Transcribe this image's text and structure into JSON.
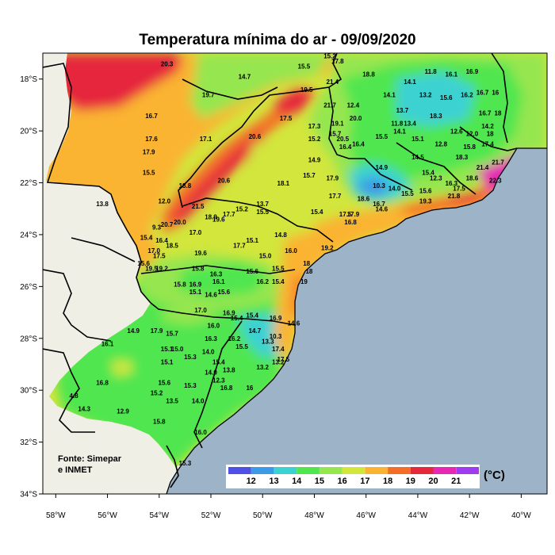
{
  "title": "Temperatura mínima do ar - 09/09/2020",
  "source_line1": "Fonte: Simepar",
  "source_line2": "e INMET",
  "unit": "(°C)",
  "colors": {
    "ocean": "#9db3c8",
    "land_outside": "#efefe6",
    "scale": [
      "#5050e6",
      "#3c9be6",
      "#3cd2d2",
      "#50e650",
      "#96e650",
      "#d2e63c",
      "#fab432",
      "#f56e28",
      "#e6283c",
      "#e628b4",
      "#a03cf0"
    ]
  },
  "colorbar_ticks": [
    "12",
    "13",
    "14",
    "15",
    "16",
    "17",
    "18",
    "19",
    "20",
    "21"
  ],
  "lat_ticks": [
    "18°S",
    "20°S",
    "22°S",
    "24°S",
    "26°S",
    "28°S",
    "30°S",
    "32°S",
    "34°S"
  ],
  "lon_ticks": [
    "58°W",
    "56°W",
    "54°W",
    "52°W",
    "50°W",
    "48°W",
    "46°W",
    "44°W",
    "42°W",
    "40°W"
  ],
  "station_values": [
    {
      "v": "20.3",
      "lon": -53.7,
      "lat": -17.5
    },
    {
      "v": "19.7",
      "lon": -52.1,
      "lat": -18.7
    },
    {
      "v": "14.7",
      "lon": -50.7,
      "lat": -18.0
    },
    {
      "v": "15.5",
      "lon": -48.4,
      "lat": -17.6
    },
    {
      "v": "15.2",
      "lon": -47.4,
      "lat": -17.2
    },
    {
      "v": "17.8",
      "lon": -46.9,
      "lat": -17.0
    },
    {
      "v": "17.8",
      "lon": -47.1,
      "lat": -17.4
    },
    {
      "v": "18.8",
      "lon": -45.9,
      "lat": -17.9
    },
    {
      "v": "21.4",
      "lon": -47.3,
      "lat": -18.2
    },
    {
      "v": "19.5",
      "lon": -48.3,
      "lat": -18.5
    },
    {
      "v": "21.7",
      "lon": -47.4,
      "lat": -19.1
    },
    {
      "v": "12.4",
      "lon": -46.5,
      "lat": -19.1
    },
    {
      "v": "20.0",
      "lon": -46.4,
      "lat": -19.6
    },
    {
      "v": "17.5",
      "lon": -49.1,
      "lat": -19.6
    },
    {
      "v": "16.7",
      "lon": -54.3,
      "lat": -19.5
    },
    {
      "v": "14.1",
      "lon": -44.3,
      "lat": -18.2
    },
    {
      "v": "11.8",
      "lon": -43.5,
      "lat": -17.8
    },
    {
      "v": "16.1",
      "lon": -42.7,
      "lat": -17.9
    },
    {
      "v": "16.9",
      "lon": -41.9,
      "lat": -17.8
    },
    {
      "v": "13.2",
      "lon": -43.7,
      "lat": -18.7
    },
    {
      "v": "15.6",
      "lon": -42.9,
      "lat": -18.8
    },
    {
      "v": "14.1",
      "lon": -45.1,
      "lat": -18.7
    },
    {
      "v": "16.2",
      "lon": -42.1,
      "lat": -18.7
    },
    {
      "v": "16.7",
      "lon": -41.5,
      "lat": -18.6
    },
    {
      "v": "16",
      "lon": -41.0,
      "lat": -18.6
    },
    {
      "v": "13.7",
      "lon": -44.6,
      "lat": -19.3
    },
    {
      "v": "18.3",
      "lon": -43.3,
      "lat": -19.5
    },
    {
      "v": "11.8",
      "lon": -44.8,
      "lat": -19.8
    },
    {
      "v": "13.4",
      "lon": -44.3,
      "lat": -19.8
    },
    {
      "v": "16.7",
      "lon": -41.4,
      "lat": -19.4
    },
    {
      "v": "18",
      "lon": -40.9,
      "lat": -19.4
    },
    {
      "v": "14.2",
      "lon": -41.3,
      "lat": -19.9
    },
    {
      "v": "12.6",
      "lon": -42.5,
      "lat": -20.1
    },
    {
      "v": "12.0",
      "lon": -41.9,
      "lat": -20.2
    },
    {
      "v": "18",
      "lon": -41.2,
      "lat": -20.2
    },
    {
      "v": "17.3",
      "lon": -48.0,
      "lat": -19.9
    },
    {
      "v": "19.1",
      "lon": -47.1,
      "lat": -19.8
    },
    {
      "v": "15.7",
      "lon": -47.2,
      "lat": -20.2
    },
    {
      "v": "20.5",
      "lon": -46.9,
      "lat": -20.4
    },
    {
      "v": "16.4",
      "lon": -46.8,
      "lat": -20.7
    },
    {
      "v": "16.4",
      "lon": -46.3,
      "lat": -20.6
    },
    {
      "v": "15.2",
      "lon": -48.0,
      "lat": -20.4
    },
    {
      "v": "15.5",
      "lon": -45.4,
      "lat": -20.3
    },
    {
      "v": "14.1",
      "lon": -44.7,
      "lat": -20.1
    },
    {
      "v": "15.1",
      "lon": -44.0,
      "lat": -20.4
    },
    {
      "v": "12.8",
      "lon": -43.1,
      "lat": -20.6
    },
    {
      "v": "15.8",
      "lon": -42.0,
      "lat": -20.7
    },
    {
      "v": "17.4",
      "lon": -41.3,
      "lat": -20.6
    },
    {
      "v": "14.5",
      "lon": -44.0,
      "lat": -21.1
    },
    {
      "v": "18.3",
      "lon": -42.3,
      "lat": -21.1
    },
    {
      "v": "17.6",
      "lon": -54.3,
      "lat": -20.4
    },
    {
      "v": "17.1",
      "lon": -52.2,
      "lat": -20.4
    },
    {
      "v": "17.9",
      "lon": -54.4,
      "lat": -20.9
    },
    {
      "v": "20.6",
      "lon": -50.3,
      "lat": -20.3
    },
    {
      "v": "14.9",
      "lon": -48.0,
      "lat": -21.2
    },
    {
      "v": "14.9",
      "lon": -45.4,
      "lat": -21.5
    },
    {
      "v": "15.4",
      "lon": -43.6,
      "lat": -21.7
    },
    {
      "v": "12.3",
      "lon": -43.3,
      "lat": -21.9
    },
    {
      "v": "21.4",
      "lon": -41.5,
      "lat": -21.5
    },
    {
      "v": "21.7",
      "lon": -40.9,
      "lat": -21.3
    },
    {
      "v": "16.3",
      "lon": -42.7,
      "lat": -22.1
    },
    {
      "v": "18.6",
      "lon": -41.9,
      "lat": -21.9
    },
    {
      "v": "22.3",
      "lon": -41.0,
      "lat": -22.0
    },
    {
      "v": "15.7",
      "lon": -48.2,
      "lat": -21.8
    },
    {
      "v": "17.9",
      "lon": -47.3,
      "lat": -21.9
    },
    {
      "v": "15.5",
      "lon": -54.4,
      "lat": -21.7
    },
    {
      "v": "18.8",
      "lon": -53.0,
      "lat": -22.2
    },
    {
      "v": "20.6",
      "lon": -51.5,
      "lat": -22.0
    },
    {
      "v": "18.1",
      "lon": -49.2,
      "lat": -22.1
    },
    {
      "v": "10.3",
      "lon": -45.5,
      "lat": -22.2
    },
    {
      "v": "14.0",
      "lon": -44.9,
      "lat": -22.3
    },
    {
      "v": "15.6",
      "lon": -43.7,
      "lat": -22.4
    },
    {
      "v": "17.5",
      "lon": -42.4,
      "lat": -22.3
    },
    {
      "v": "19.3",
      "lon": -43.7,
      "lat": -22.8
    },
    {
      "v": "21.8",
      "lon": -42.6,
      "lat": -22.6
    },
    {
      "v": "15.5",
      "lon": -44.4,
      "lat": -22.5
    },
    {
      "v": "18.6",
      "lon": -46.1,
      "lat": -22.7
    },
    {
      "v": "16.7",
      "lon": -45.5,
      "lat": -22.9
    },
    {
      "v": "14.6",
      "lon": -45.4,
      "lat": -23.1
    },
    {
      "v": "17.7",
      "lon": -47.2,
      "lat": -22.6
    },
    {
      "v": "15.4",
      "lon": -47.9,
      "lat": -23.2
    },
    {
      "v": "17.5",
      "lon": -46.8,
      "lat": -23.3
    },
    {
      "v": "17.9",
      "lon": -46.5,
      "lat": -23.3
    },
    {
      "v": "16.8",
      "lon": -46.6,
      "lat": -23.6
    },
    {
      "v": "13.8",
      "lon": -56.2,
      "lat": -22.9
    },
    {
      "v": "12.0",
      "lon": -53.8,
      "lat": -22.8
    },
    {
      "v": "21.5",
      "lon": -52.5,
      "lat": -23.0
    },
    {
      "v": "15.2",
      "lon": -50.8,
      "lat": -23.1
    },
    {
      "v": "13.7",
      "lon": -50.0,
      "lat": -22.9
    },
    {
      "v": "15.5",
      "lon": -50.0,
      "lat": -23.2
    },
    {
      "v": "17.7",
      "lon": -51.3,
      "lat": -23.3
    },
    {
      "v": "18.9",
      "lon": -52.0,
      "lat": -23.4
    },
    {
      "v": "19.6",
      "lon": -51.7,
      "lat": -23.5
    },
    {
      "v": "20.7",
      "lon": -53.7,
      "lat": -23.7
    },
    {
      "v": "20.0",
      "lon": -53.2,
      "lat": -23.6
    },
    {
      "v": "17.0",
      "lon": -52.6,
      "lat": -24.0
    },
    {
      "v": "9.3",
      "lon": -54.1,
      "lat": -23.8
    },
    {
      "v": "15.4",
      "lon": -54.5,
      "lat": -24.2
    },
    {
      "v": "16.4",
      "lon": -53.9,
      "lat": -24.3
    },
    {
      "v": "18.5",
      "lon": -53.5,
      "lat": -24.5
    },
    {
      "v": "15.1",
      "lon": -50.4,
      "lat": -24.3
    },
    {
      "v": "14.8",
      "lon": -49.3,
      "lat": -24.1
    },
    {
      "v": "17.7",
      "lon": -50.9,
      "lat": -24.5
    },
    {
      "v": "19.2",
      "lon": -47.5,
      "lat": -24.6
    },
    {
      "v": "17.0",
      "lon": -54.2,
      "lat": -24.7
    },
    {
      "v": "17.5",
      "lon": -54.0,
      "lat": -24.9
    },
    {
      "v": "19.6",
      "lon": -52.4,
      "lat": -24.8
    },
    {
      "v": "15.0",
      "lon": -49.9,
      "lat": -24.9
    },
    {
      "v": "16.0",
      "lon": -48.9,
      "lat": -24.7
    },
    {
      "v": "18",
      "lon": -48.3,
      "lat": -25.2
    },
    {
      "v": "18",
      "lon": -48.2,
      "lat": -25.5
    },
    {
      "v": "15.6",
      "lon": -54.6,
      "lat": -25.2
    },
    {
      "v": "19.5",
      "lon": -54.3,
      "lat": -25.4
    },
    {
      "v": "19.2",
      "lon": -53.9,
      "lat": -25.4
    },
    {
      "v": "15.8",
      "lon": -52.5,
      "lat": -25.4
    },
    {
      "v": "16.3",
      "lon": -51.8,
      "lat": -25.6
    },
    {
      "v": "15.6",
      "lon": -50.4,
      "lat": -25.5
    },
    {
      "v": "15.5",
      "lon": -49.4,
      "lat": -25.4
    },
    {
      "v": "16.2",
      "lon": -50.0,
      "lat": -25.9
    },
    {
      "v": "15.4",
      "lon": -49.4,
      "lat": -25.9
    },
    {
      "v": "19",
      "lon": -48.4,
      "lat": -25.9
    },
    {
      "v": "15.8",
      "lon": -53.2,
      "lat": -26.0
    },
    {
      "v": "16.9",
      "lon": -52.6,
      "lat": -26.0
    },
    {
      "v": "16.1",
      "lon": -51.7,
      "lat": -25.9
    },
    {
      "v": "15.1",
      "lon": -52.6,
      "lat": -26.3
    },
    {
      "v": "14.6",
      "lon": -52.0,
      "lat": -26.4
    },
    {
      "v": "15.6",
      "lon": -51.5,
      "lat": -26.3
    },
    {
      "v": "17.0",
      "lon": -52.4,
      "lat": -27.0
    },
    {
      "v": "16.9",
      "lon": -51.3,
      "lat": -27.1
    },
    {
      "v": "15.4",
      "lon": -51.0,
      "lat": -27.3
    },
    {
      "v": "15.4",
      "lon": -50.4,
      "lat": -27.2
    },
    {
      "v": "16.9",
      "lon": -49.5,
      "lat": -27.3
    },
    {
      "v": "14.6",
      "lon": -48.8,
      "lat": -27.5
    },
    {
      "v": "16.0",
      "lon": -51.9,
      "lat": -27.6
    },
    {
      "v": "14.9",
      "lon": -55.0,
      "lat": -27.8
    },
    {
      "v": "17.9",
      "lon": -54.1,
      "lat": -27.8
    },
    {
      "v": "15.7",
      "lon": -53.5,
      "lat": -27.9
    },
    {
      "v": "14.7",
      "lon": -50.3,
      "lat": -27.8
    },
    {
      "v": "10.3",
      "lon": -49.5,
      "lat": -28.0
    },
    {
      "v": "16.3",
      "lon": -52.0,
      "lat": -28.1
    },
    {
      "v": "16.2",
      "lon": -51.1,
      "lat": -28.1
    },
    {
      "v": "13.3",
      "lon": -49.8,
      "lat": -28.2
    },
    {
      "v": "16.1",
      "lon": -56.0,
      "lat": -28.3
    },
    {
      "v": "15.1",
      "lon": -53.7,
      "lat": -28.5
    },
    {
      "v": "15.0",
      "lon": -53.3,
      "lat": -28.5
    },
    {
      "v": "14.0",
      "lon": -52.1,
      "lat": -28.6
    },
    {
      "v": "15.5",
      "lon": -50.8,
      "lat": -28.4
    },
    {
      "v": "17.4",
      "lon": -49.4,
      "lat": -28.5
    },
    {
      "v": "15.3",
      "lon": -52.8,
      "lat": -28.8
    },
    {
      "v": "13.2",
      "lon": -49.4,
      "lat": -29.0
    },
    {
      "v": "17.5",
      "lon": -49.2,
      "lat": -28.9
    },
    {
      "v": "15.1",
      "lon": -53.7,
      "lat": -29.0
    },
    {
      "v": "15.4",
      "lon": -51.7,
      "lat": -29.0
    },
    {
      "v": "13.2",
      "lon": -50.0,
      "lat": -29.2
    },
    {
      "v": "14.0",
      "lon": -52.0,
      "lat": -29.4
    },
    {
      "v": "13.8",
      "lon": -51.3,
      "lat": -29.3
    },
    {
      "v": "16.8",
      "lon": -56.2,
      "lat": -29.8
    },
    {
      "v": "15.6",
      "lon": -53.8,
      "lat": -29.8
    },
    {
      "v": "15.3",
      "lon": -52.8,
      "lat": -29.9
    },
    {
      "v": "12.3",
      "lon": -51.7,
      "lat": -29.7
    },
    {
      "v": "16.8",
      "lon": -51.4,
      "lat": -30.0
    },
    {
      "v": "16",
      "lon": -50.5,
      "lat": -30.0
    },
    {
      "v": "15.2",
      "lon": -54.1,
      "lat": -30.2
    },
    {
      "v": "4.8",
      "lon": -57.3,
      "lat": -30.3
    },
    {
      "v": "13.5",
      "lon": -53.5,
      "lat": -30.5
    },
    {
      "v": "14.0",
      "lon": -52.5,
      "lat": -30.5
    },
    {
      "v": "14.3",
      "lon": -56.9,
      "lat": -30.8
    },
    {
      "v": "12.9",
      "lon": -55.4,
      "lat": -30.9
    },
    {
      "v": "15.8",
      "lon": -54.0,
      "lat": -31.3
    },
    {
      "v": "16.0",
      "lon": -52.4,
      "lat": -31.7
    },
    {
      "v": "15.3",
      "lon": -53.0,
      "lat": -32.9
    }
  ],
  "map_notes": {
    "projection": "lat/lon plate carrée",
    "extent_lon": [
      -58.5,
      -39.0
    ],
    "extent_lat": [
      -34.0,
      -17.0
    ]
  }
}
